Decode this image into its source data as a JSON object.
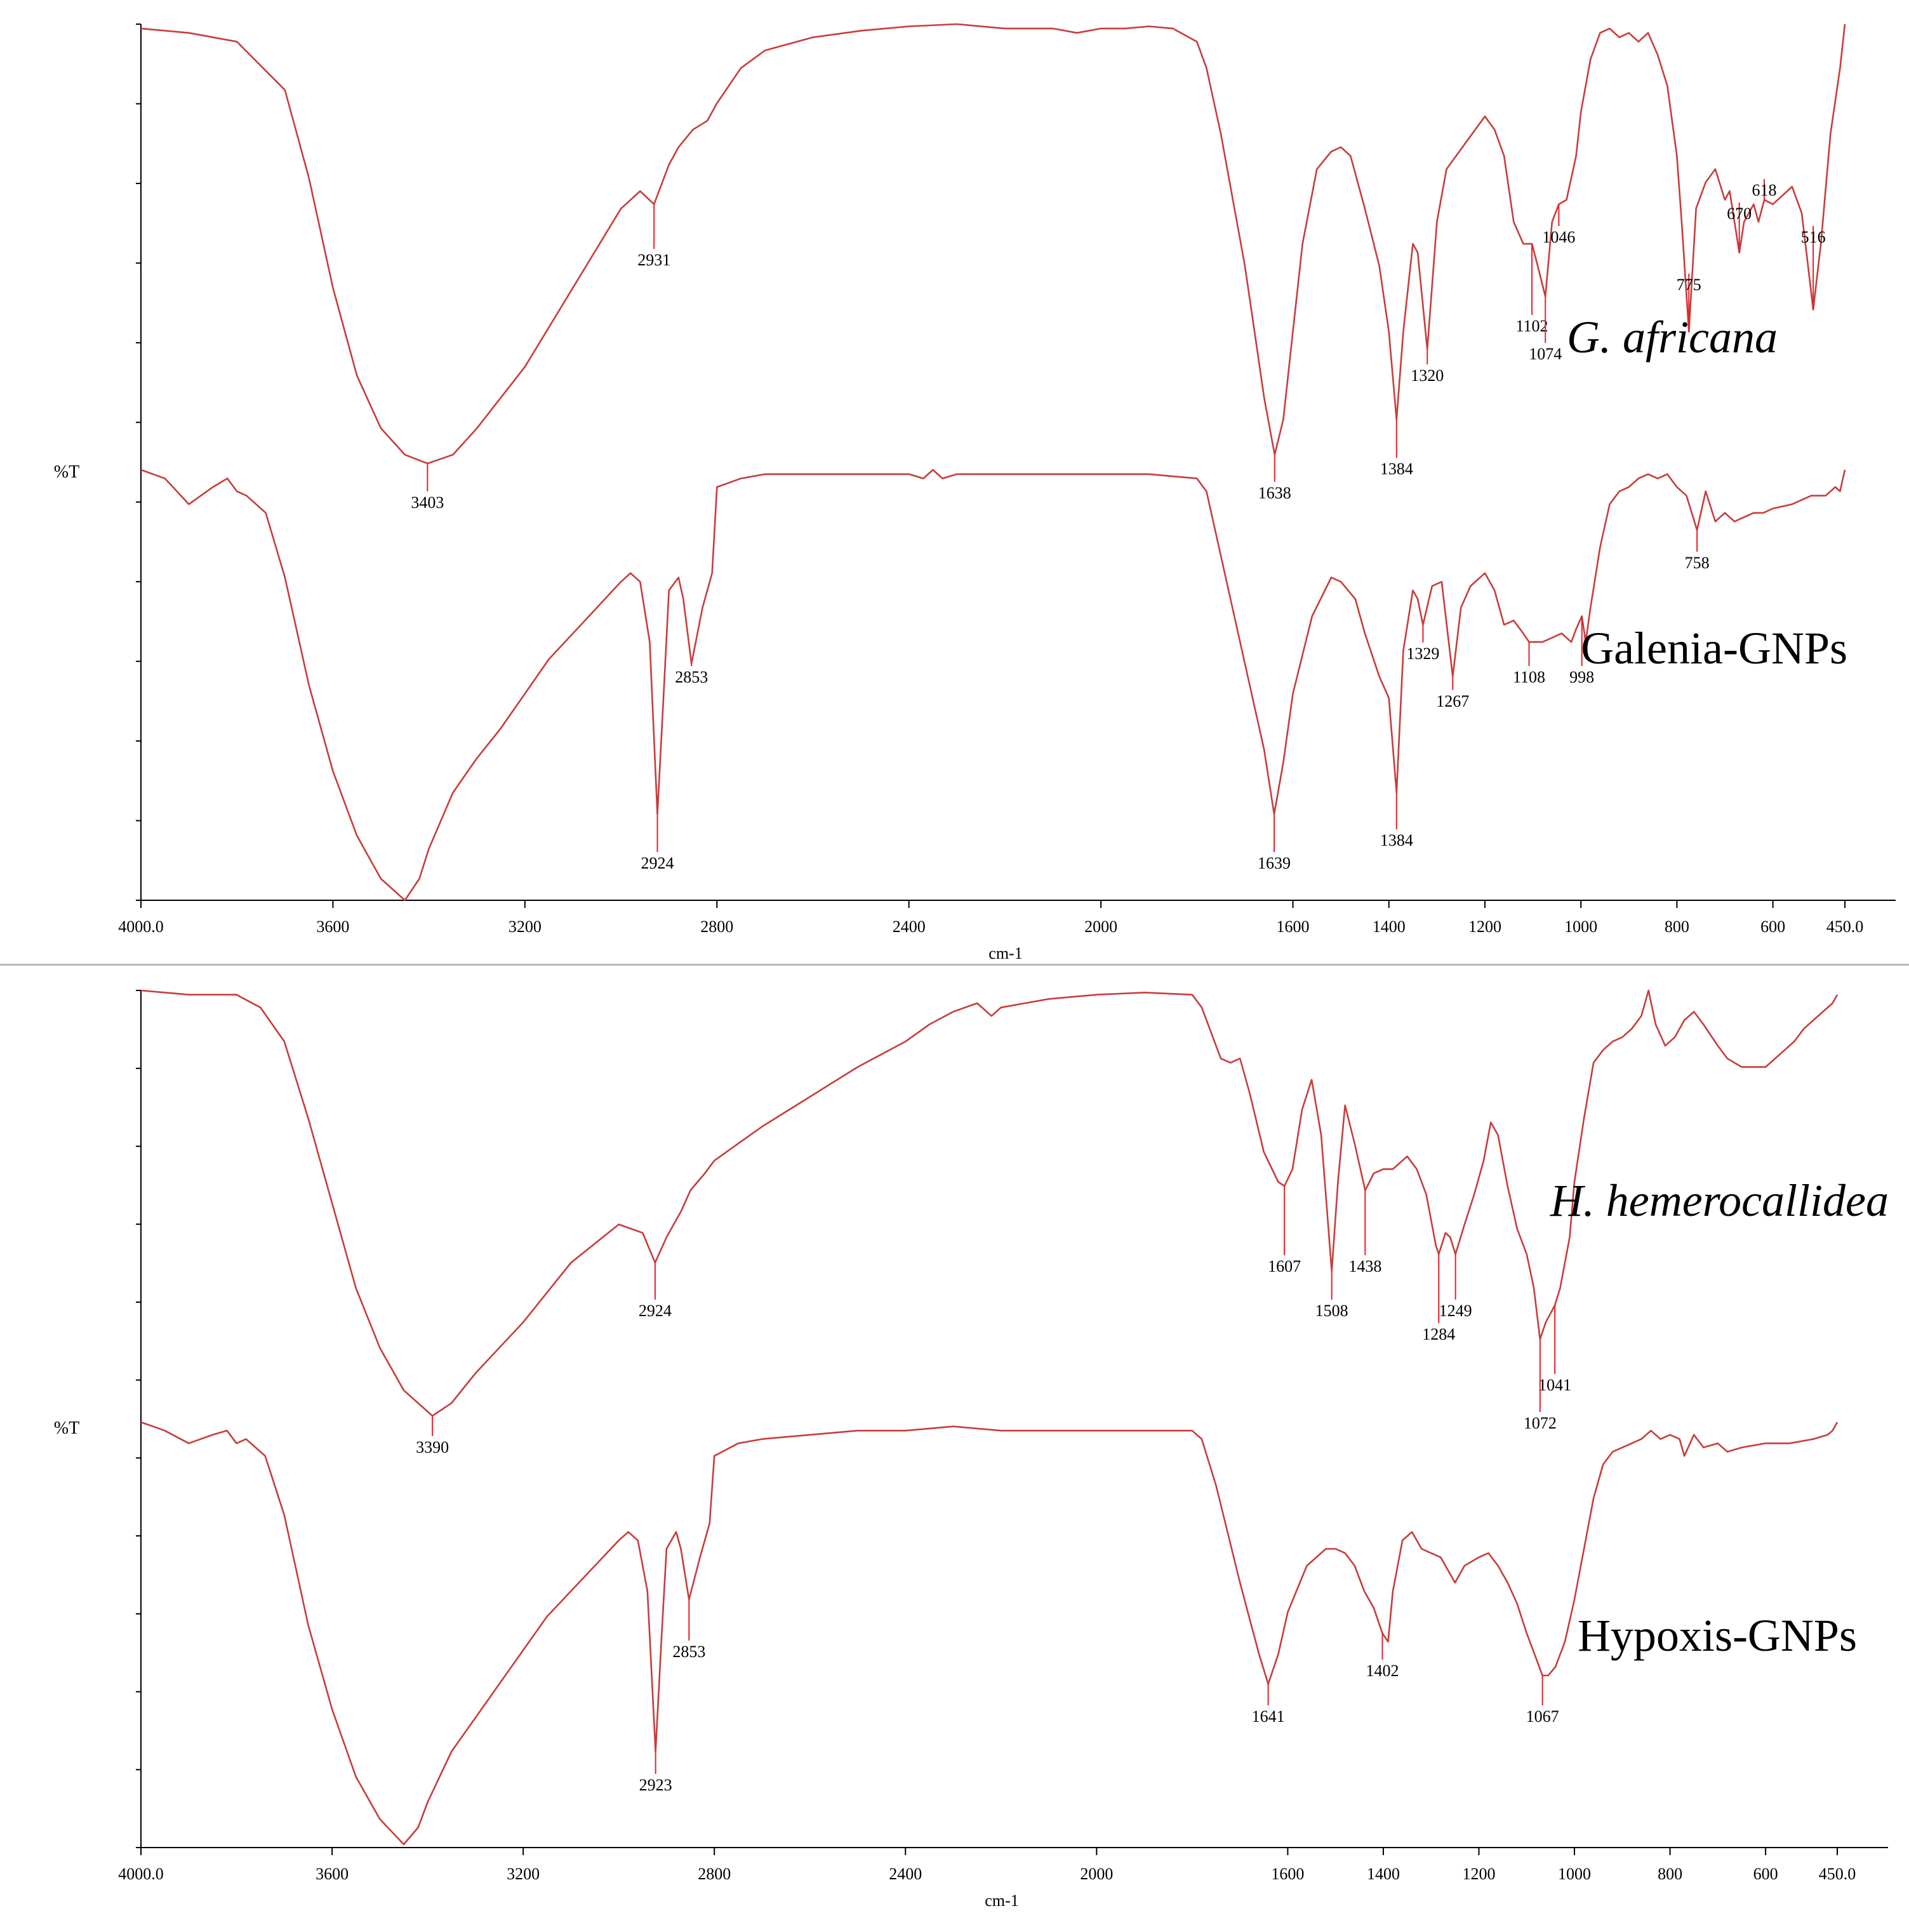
{
  "chart_data": [
    {
      "type": "line",
      "xlabel": "cm-1",
      "ylabel": "%T",
      "xlim": [
        4000.0,
        450.0
      ],
      "x_reversed": true,
      "x_ticks": [
        "4000.0",
        "3600",
        "3200",
        "2800",
        "2400",
        "2000",
        "1600",
        "1400",
        "1200",
        "1000",
        "800",
        "600",
        "450.0"
      ],
      "x_tick_values": [
        4000,
        3600,
        3200,
        2800,
        2400,
        2000,
        1600,
        1400,
        1200,
        1000,
        800,
        600,
        450
      ],
      "series": [
        {
          "name": "G. africana",
          "italic": true,
          "color": "#c83c3c",
          "x": [
            4000,
            3900,
            3800,
            3700,
            3650,
            3600,
            3550,
            3500,
            3450,
            3403,
            3350,
            3300,
            3200,
            3100,
            3000,
            2960,
            2931,
            2900,
            2880,
            2850,
            2820,
            2800,
            2750,
            2700,
            2600,
            2500,
            2400,
            2300,
            2200,
            2100,
            2050,
            2000,
            1950,
            1900,
            1850,
            1800,
            1780,
            1750,
            1700,
            1680,
            1660,
            1638,
            1620,
            1600,
            1580,
            1550,
            1520,
            1500,
            1480,
            1450,
            1420,
            1400,
            1384,
            1370,
            1350,
            1340,
            1320,
            1300,
            1280,
            1260,
            1240,
            1220,
            1200,
            1180,
            1160,
            1140,
            1120,
            1102,
            1090,
            1074,
            1060,
            1046,
            1030,
            1010,
            1000,
            980,
            960,
            940,
            920,
            900,
            880,
            860,
            840,
            820,
            800,
            790,
            775,
            760,
            740,
            720,
            700,
            690,
            680,
            670,
            660,
            640,
            630,
            618,
            600,
            580,
            560,
            540,
            530,
            516,
            500,
            480,
            460,
            450
          ],
          "y": [
            99,
            98,
            96,
            85,
            65,
            40,
            20,
            8,
            2,
            0,
            2,
            8,
            22,
            40,
            58,
            62,
            59,
            68,
            72,
            76,
            78,
            82,
            90,
            94,
            97,
            98.5,
            99.5,
            100,
            99,
            99,
            98,
            99,
            99,
            99.5,
            99,
            96,
            90,
            75,
            45,
            30,
            15,
            2,
            10,
            30,
            50,
            67,
            71,
            72,
            70,
            58,
            45,
            30,
            10,
            30,
            50,
            48,
            26,
            55,
            67,
            70,
            73,
            76,
            79,
            76,
            70,
            55,
            50,
            50,
            45,
            38,
            55,
            59,
            60,
            70,
            80,
            92,
            98,
            99,
            97,
            98,
            96,
            98,
            93,
            86,
            70,
            55,
            30,
            58,
            64,
            67,
            60,
            62,
            55,
            48,
            55,
            59,
            55,
            60,
            59,
            61,
            63,
            57,
            48,
            35,
            50,
            75,
            90,
            100
          ]
        },
        {
          "name": "Galenia-GNPs",
          "italic": false,
          "color": "#c83c3c",
          "x": [
            4000,
            3950,
            3900,
            3850,
            3820,
            3800,
            3780,
            3740,
            3700,
            3650,
            3600,
            3550,
            3500,
            3450,
            3420,
            3400,
            3350,
            3300,
            3250,
            3200,
            3150,
            3100,
            3050,
            3000,
            2980,
            2960,
            2940,
            2924,
            2910,
            2900,
            2880,
            2870,
            2853,
            2830,
            2810,
            2800,
            2750,
            2700,
            2600,
            2500,
            2400,
            2370,
            2350,
            2330,
            2300,
            2200,
            2100,
            2000,
            1900,
            1800,
            1780,
            1750,
            1700,
            1660,
            1639,
            1620,
            1600,
            1560,
            1520,
            1500,
            1470,
            1450,
            1420,
            1400,
            1384,
            1370,
            1350,
            1340,
            1329,
            1310,
            1290,
            1267,
            1250,
            1230,
            1200,
            1180,
            1160,
            1140,
            1120,
            1108,
            1080,
            1060,
            1040,
            1020,
            1010,
            998,
            990,
            980,
            960,
            940,
            920,
            900,
            880,
            860,
            840,
            820,
            800,
            780,
            758,
            740,
            720,
            700,
            680,
            660,
            640,
            620,
            600,
            560,
            520,
            490,
            470,
            460,
            450
          ],
          "y": [
            100,
            98,
            92,
            96,
            98,
            95,
            94,
            90,
            75,
            50,
            30,
            15,
            5,
            0,
            5,
            12,
            25,
            33,
            40,
            48,
            56,
            62,
            68,
            74,
            76,
            74,
            60,
            20,
            50,
            72,
            75,
            70,
            55,
            68,
            76,
            96,
            98,
            99,
            99,
            99,
            99,
            98,
            100,
            98,
            99,
            99,
            99,
            99,
            99,
            98,
            95,
            80,
            55,
            35,
            20,
            32,
            48,
            66,
            75,
            74,
            70,
            62,
            52,
            47,
            25,
            58,
            72,
            70,
            64,
            73,
            74,
            52,
            68,
            73,
            76,
            72,
            64,
            65,
            62,
            60,
            60,
            61,
            62,
            60,
            63,
            66,
            60,
            68,
            82,
            92,
            95,
            96,
            98,
            99,
            98,
            99,
            96,
            94,
            86,
            95,
            88,
            90,
            88,
            89,
            90,
            90,
            91,
            92,
            94,
            94,
            96,
            95,
            100
          ]
        }
      ],
      "peaks": [
        {
          "label": "3403",
          "x": 3403,
          "series": 0
        },
        {
          "label": "2931",
          "x": 2931,
          "series": 0
        },
        {
          "label": "1638",
          "x": 1638,
          "series": 0
        },
        {
          "label": "1384",
          "x": 1384,
          "series": 0
        },
        {
          "label": "1320",
          "x": 1320,
          "series": 0
        },
        {
          "label": "1102",
          "x": 1102,
          "series": 0
        },
        {
          "label": "1074",
          "x": 1074,
          "series": 0
        },
        {
          "label": "1046",
          "x": 1046,
          "series": 0
        },
        {
          "label": "775",
          "x": 775,
          "series": 0
        },
        {
          "label": "670",
          "x": 670,
          "series": 0
        },
        {
          "label": "618",
          "x": 618,
          "series": 0
        },
        {
          "label": "516",
          "x": 516,
          "series": 0
        },
        {
          "label": "2924",
          "x": 2924,
          "series": 1
        },
        {
          "label": "2853",
          "x": 2853,
          "series": 1
        },
        {
          "label": "1639",
          "x": 1639,
          "series": 1
        },
        {
          "label": "1384",
          "x": 1384,
          "series": 1
        },
        {
          "label": "1329",
          "x": 1329,
          "series": 1
        },
        {
          "label": "1267",
          "x": 1267,
          "series": 1
        },
        {
          "label": "1108",
          "x": 1108,
          "series": 1
        },
        {
          "label": "998",
          "x": 998,
          "series": 1
        },
        {
          "label": "758",
          "x": 758,
          "series": 1
        }
      ]
    },
    {
      "type": "line",
      "xlabel": "cm-1",
      "ylabel": "%T",
      "xlim": [
        4000.0,
        450.0
      ],
      "x_reversed": true,
      "x_ticks": [
        "4000.0",
        "3600",
        "3200",
        "2800",
        "2400",
        "2000",
        "1600",
        "1400",
        "1200",
        "1000",
        "800",
        "600",
        "450.0"
      ],
      "x_tick_values": [
        4000,
        3600,
        3200,
        2800,
        2400,
        2000,
        1600,
        1400,
        1200,
        1000,
        800,
        600,
        450
      ],
      "series": [
        {
          "name": "H. hemerocallidea",
          "italic": true,
          "color": "#c83c3c",
          "x": [
            4000,
            3900,
            3800,
            3750,
            3700,
            3650,
            3600,
            3550,
            3500,
            3450,
            3390,
            3350,
            3300,
            3200,
            3100,
            3000,
            2950,
            2924,
            2900,
            2870,
            2850,
            2820,
            2800,
            2750,
            2700,
            2600,
            2500,
            2400,
            2350,
            2300,
            2250,
            2220,
            2200,
            2150,
            2100,
            2000,
            1900,
            1800,
            1780,
            1760,
            1740,
            1720,
            1700,
            1680,
            1650,
            1620,
            1607,
            1590,
            1570,
            1550,
            1530,
            1508,
            1495,
            1480,
            1460,
            1438,
            1420,
            1400,
            1380,
            1350,
            1330,
            1310,
            1290,
            1284,
            1270,
            1260,
            1249,
            1230,
            1210,
            1190,
            1175,
            1160,
            1140,
            1120,
            1100,
            1085,
            1072,
            1060,
            1041,
            1030,
            1010,
            1000,
            980,
            960,
            940,
            920,
            900,
            880,
            860,
            845,
            830,
            810,
            790,
            770,
            750,
            730,
            700,
            680,
            650,
            630,
            600,
            580,
            560,
            540,
            520,
            500,
            480,
            460,
            450
          ],
          "y": [
            100,
            99,
            99,
            96,
            88,
            70,
            50,
            30,
            16,
            6,
            0,
            3,
            10,
            22,
            36,
            45,
            43,
            36,
            42,
            48,
            53,
            57,
            60,
            64,
            68,
            75,
            82,
            88,
            92,
            95,
            97,
            94,
            96,
            97,
            98,
            99,
            99.5,
            99,
            96,
            90,
            84,
            83,
            84,
            76,
            62,
            55,
            54,
            58,
            72,
            79,
            66,
            34,
            55,
            73,
            64,
            53,
            57,
            58,
            58,
            61,
            58,
            52,
            40,
            38,
            43,
            42,
            38,
            45,
            52,
            60,
            69,
            66,
            54,
            44,
            38,
            30,
            18,
            22,
            26,
            30,
            42,
            55,
            70,
            83,
            86,
            88,
            89,
            91,
            94,
            100,
            92,
            87,
            89,
            93,
            95,
            92,
            87,
            84,
            82,
            82,
            82,
            84,
            86,
            88,
            91,
            93,
            95,
            97,
            99
          ]
        },
        {
          "name": "Hypoxis-GNPs",
          "italic": false,
          "color": "#c83c3c",
          "x": [
            4000,
            3950,
            3900,
            3850,
            3820,
            3800,
            3780,
            3740,
            3700,
            3650,
            3600,
            3550,
            3500,
            3450,
            3420,
            3400,
            3350,
            3300,
            3250,
            3200,
            3150,
            3100,
            3050,
            3000,
            2980,
            2960,
            2940,
            2923,
            2910,
            2900,
            2880,
            2870,
            2853,
            2830,
            2810,
            2800,
            2750,
            2700,
            2600,
            2500,
            2400,
            2300,
            2200,
            2100,
            2000,
            1900,
            1800,
            1780,
            1750,
            1700,
            1660,
            1641,
            1620,
            1600,
            1560,
            1520,
            1500,
            1480,
            1460,
            1440,
            1420,
            1402,
            1390,
            1380,
            1360,
            1340,
            1320,
            1300,
            1280,
            1260,
            1250,
            1230,
            1200,
            1180,
            1160,
            1140,
            1120,
            1100,
            1080,
            1067,
            1055,
            1040,
            1020,
            1000,
            980,
            960,
            940,
            920,
            900,
            880,
            860,
            840,
            820,
            800,
            780,
            770,
            750,
            730,
            700,
            680,
            650,
            600,
            550,
            500,
            470,
            460,
            450
          ],
          "y": [
            100,
            98,
            95,
            97,
            98,
            95,
            96,
            92,
            78,
            52,
            32,
            16,
            6,
            0,
            4,
            10,
            22,
            30,
            38,
            46,
            54,
            60,
            66,
            72,
            74,
            72,
            60,
            22,
            50,
            70,
            74,
            70,
            58,
            68,
            76,
            92,
            95,
            96,
            97,
            98,
            98,
            99,
            98,
            98,
            98,
            98,
            98,
            96,
            85,
            62,
            45,
            38,
            45,
            55,
            66,
            70,
            70,
            69,
            66,
            60,
            56,
            50,
            48,
            60,
            72,
            74,
            70,
            69,
            68,
            64,
            62,
            66,
            68,
            69,
            66,
            62,
            57,
            50,
            44,
            40,
            40,
            42,
            48,
            58,
            70,
            82,
            90,
            93,
            94,
            95,
            96,
            98,
            96,
            97,
            96,
            92,
            97,
            94,
            95,
            93,
            94,
            95,
            95,
            96,
            97,
            98,
            100
          ]
        }
      ],
      "peaks": [
        {
          "label": "3390",
          "x": 3390,
          "series": 0
        },
        {
          "label": "2924",
          "x": 2924,
          "series": 0
        },
        {
          "label": "1607",
          "x": 1607,
          "series": 0
        },
        {
          "label": "1508",
          "x": 1508,
          "series": 0
        },
        {
          "label": "1438",
          "x": 1438,
          "series": 0
        },
        {
          "label": "1284",
          "x": 1284,
          "series": 0
        },
        {
          "label": "1249",
          "x": 1249,
          "series": 0
        },
        {
          "label": "1072",
          "x": 1072,
          "series": 0
        },
        {
          "label": "1041",
          "x": 1041,
          "series": 0
        },
        {
          "label": "2923",
          "x": 2923,
          "series": 1
        },
        {
          "label": "2853",
          "x": 2853,
          "series": 1
        },
        {
          "label": "1641",
          "x": 1641,
          "series": 1
        },
        {
          "label": "1402",
          "x": 1402,
          "series": 1
        },
        {
          "label": "1067",
          "x": 1067,
          "series": 1
        }
      ]
    }
  ]
}
